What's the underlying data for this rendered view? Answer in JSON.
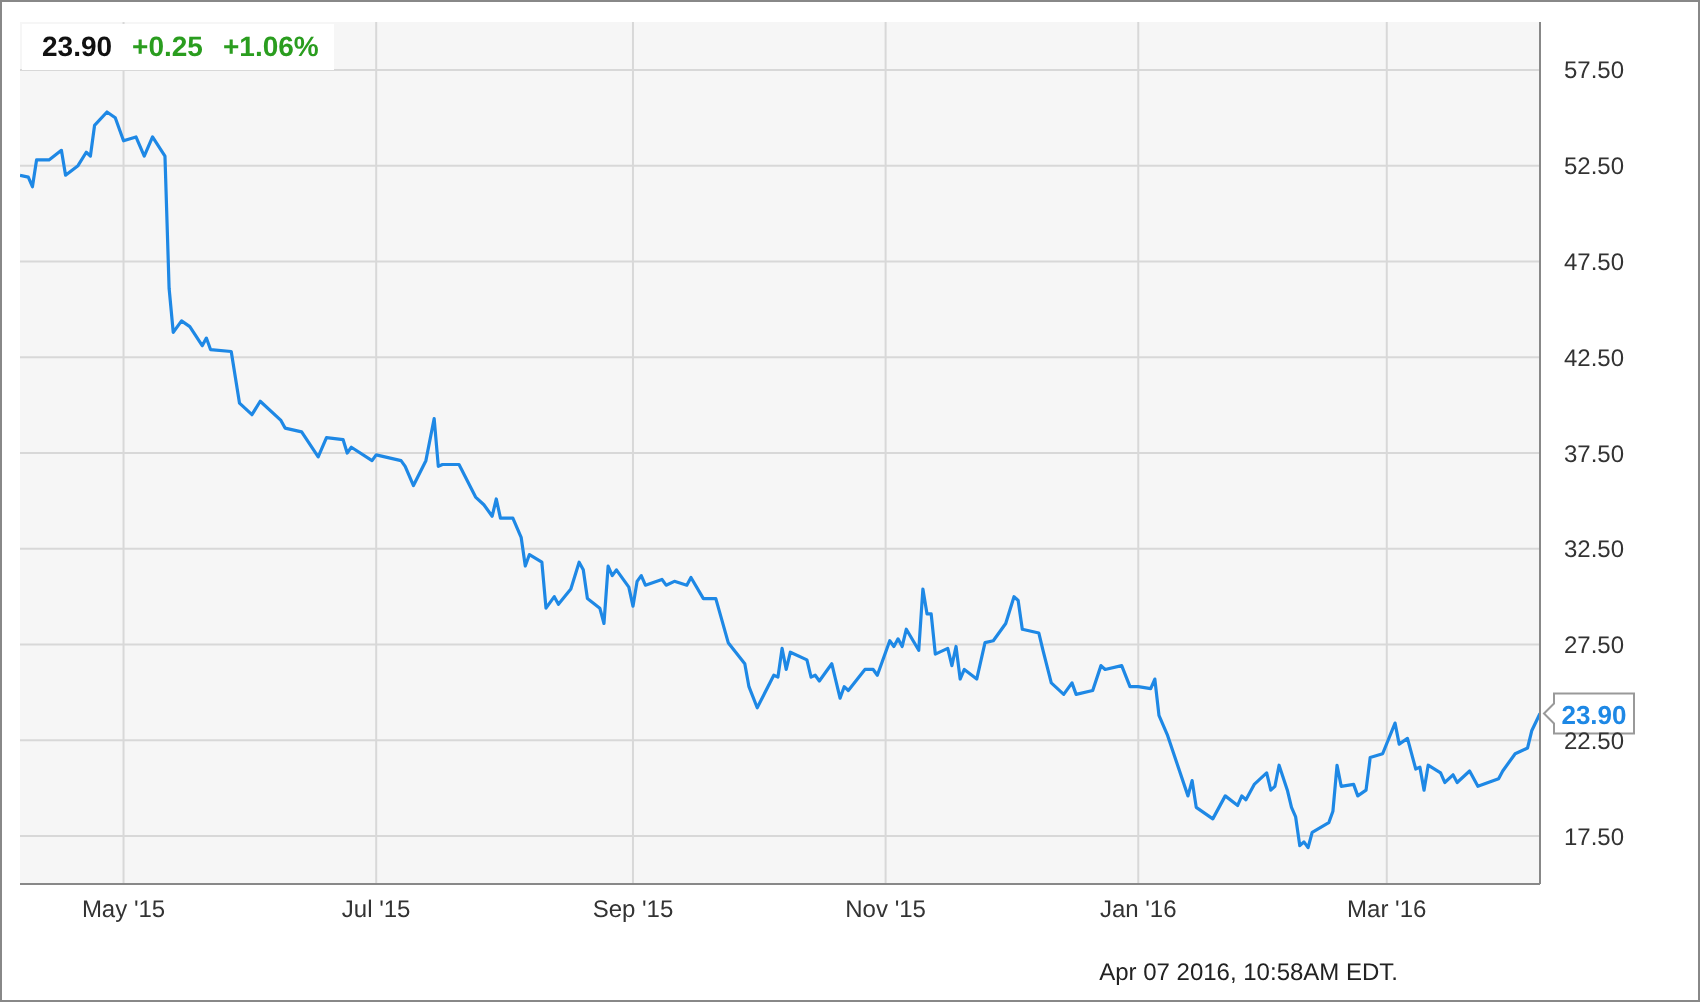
{
  "chart_data": {
    "type": "line",
    "annotations": [
      "23.90",
      "+0.25",
      "+1.06%",
      "Apr 07 2016, 10:58AM EDT.",
      {
        "text": "23.90",
        "x": "2016-04-07",
        "y": 23.9
      }
    ],
    "x": [
      "2015-04-06",
      "2015-04-08",
      "2015-04-09",
      "2015-04-10",
      "2015-04-13",
      "2015-04-16",
      "2015-04-17",
      "2015-04-20",
      "2015-04-22",
      "2015-04-23",
      "2015-04-24",
      "2015-04-27",
      "2015-04-29",
      "2015-05-01",
      "2015-05-04",
      "2015-05-06",
      "2015-05-08",
      "2015-05-11",
      "2015-05-12",
      "2015-05-13",
      "2015-05-15",
      "2015-05-17",
      "2015-05-20",
      "2015-05-21",
      "2015-05-22",
      "2015-05-27",
      "2015-05-29",
      "2015-06-01",
      "2015-06-03",
      "2015-06-08",
      "2015-06-09",
      "2015-06-13",
      "2015-06-17",
      "2015-06-19",
      "2015-06-23",
      "2015-06-24",
      "2015-06-25",
      "2015-06-30",
      "2015-07-01",
      "2015-07-07",
      "2015-07-08",
      "2015-07-10",
      "2015-07-13",
      "2015-07-15",
      "2015-07-16",
      "2015-07-17",
      "2015-07-21",
      "2015-07-25",
      "2015-07-27",
      "2015-07-29",
      "2015-07-30",
      "2015-07-31",
      "2015-08-03",
      "2015-08-05",
      "2015-08-06",
      "2015-08-07",
      "2015-08-10",
      "2015-08-11",
      "2015-08-13",
      "2015-08-14",
      "2015-08-17",
      "2015-08-19",
      "2015-08-20",
      "2015-08-21",
      "2015-08-24",
      "2015-08-25",
      "2015-08-26",
      "2015-08-27",
      "2015-08-28",
      "2015-08-31",
      "2015-09-01",
      "2015-09-02",
      "2015-09-03",
      "2015-09-04",
      "2015-09-08",
      "2015-09-09",
      "2015-09-11",
      "2015-09-14",
      "2015-09-15",
      "2015-09-18",
      "2015-09-21",
      "2015-09-24",
      "2015-09-28",
      "2015-09-29",
      "2015-10-01",
      "2015-10-05",
      "2015-10-06",
      "2015-10-07",
      "2015-10-08",
      "2015-10-09",
      "2015-10-13",
      "2015-10-14",
      "2015-10-15",
      "2015-10-16",
      "2015-10-19",
      "2015-10-21",
      "2015-10-22",
      "2015-10-23",
      "2015-10-27",
      "2015-10-29",
      "2015-10-30",
      "2015-11-02",
      "2015-11-03",
      "2015-11-04",
      "2015-11-05",
      "2015-11-06",
      "2015-11-09",
      "2015-11-10",
      "2015-11-11",
      "2015-11-12",
      "2015-11-13",
      "2015-11-16",
      "2015-11-17",
      "2015-11-18",
      "2015-11-19",
      "2015-11-20",
      "2015-11-23",
      "2015-11-25",
      "2015-11-27",
      "2015-11-30",
      "2015-12-02",
      "2015-12-03",
      "2015-12-04",
      "2015-12-08",
      "2015-12-09",
      "2015-12-11",
      "2015-12-14",
      "2015-12-16",
      "2015-12-17",
      "2015-12-21",
      "2015-12-23",
      "2015-12-24",
      "2015-12-28",
      "2015-12-30",
      "2016-01-01",
      "2016-01-04",
      "2016-01-05",
      "2016-01-06",
      "2016-01-08",
      "2016-01-13",
      "2016-01-14",
      "2016-01-15",
      "2016-01-19",
      "2016-01-22",
      "2016-01-25",
      "2016-01-26",
      "2016-01-27",
      "2016-01-29",
      "2016-02-01",
      "2016-02-02",
      "2016-02-03",
      "2016-02-04",
      "2016-02-06",
      "2016-02-07",
      "2016-02-08",
      "2016-02-09",
      "2016-02-10",
      "2016-02-11",
      "2016-02-12",
      "2016-02-16",
      "2016-02-17",
      "2016-02-18",
      "2016-02-19",
      "2016-02-22",
      "2016-02-23",
      "2016-02-25",
      "2016-02-26",
      "2016-02-29",
      "2016-03-03",
      "2016-03-04",
      "2016-03-06",
      "2016-03-08",
      "2016-03-09",
      "2016-03-10",
      "2016-03-11",
      "2016-03-14",
      "2016-03-15",
      "2016-03-17",
      "2016-03-18",
      "2016-03-21",
      "2016-03-23",
      "2016-03-28",
      "2016-03-29",
      "2016-04-01",
      "2016-04-04",
      "2016-04-05",
      "2016-04-07"
    ],
    "values": [
      52.0,
      51.9,
      51.4,
      52.8,
      52.8,
      53.3,
      52.0,
      52.5,
      53.2,
      53.0,
      54.6,
      55.3,
      55.0,
      53.8,
      54.0,
      53.0,
      54.0,
      53.0,
      46.1,
      43.8,
      44.4,
      44.1,
      43.1,
      43.5,
      42.9,
      42.8,
      40.1,
      39.5,
      40.2,
      39.2,
      38.8,
      38.6,
      37.3,
      38.3,
      38.2,
      37.5,
      37.8,
      37.1,
      37.4,
      37.1,
      36.8,
      35.8,
      37.1,
      39.3,
      36.8,
      36.9,
      36.9,
      35.2,
      34.8,
      34.2,
      35.1,
      34.1,
      34.1,
      33.1,
      31.6,
      32.2,
      31.8,
      29.4,
      30.0,
      29.6,
      30.4,
      31.8,
      31.4,
      29.9,
      29.4,
      28.6,
      31.6,
      31.1,
      31.4,
      30.5,
      29.5,
      30.8,
      31.1,
      30.6,
      30.9,
      30.6,
      30.8,
      30.6,
      31.0,
      29.9,
      29.9,
      27.6,
      26.5,
      25.3,
      24.2,
      25.9,
      25.8,
      27.3,
      26.2,
      27.1,
      26.7,
      25.8,
      25.9,
      25.6,
      26.5,
      24.7,
      25.3,
      25.1,
      26.2,
      26.2,
      25.9,
      27.7,
      27.4,
      27.8,
      27.4,
      28.3,
      27.2,
      30.4,
      29.1,
      29.1,
      27.0,
      27.3,
      26.4,
      27.4,
      25.7,
      26.2,
      25.7,
      27.6,
      27.7,
      28.6,
      30.0,
      29.8,
      28.3,
      28.1,
      27.2,
      25.5,
      24.9,
      25.5,
      24.9,
      25.1,
      26.4,
      26.2,
      26.4,
      25.3,
      25.3,
      25.2,
      25.7,
      23.8,
      22.8,
      19.6,
      20.4,
      19.0,
      18.4,
      19.6,
      19.1,
      19.6,
      19.4,
      20.2,
      20.8,
      19.9,
      20.1,
      21.2,
      19.9,
      19.0,
      18.5,
      17.0,
      17.2,
      16.9,
      17.7,
      18.2,
      18.8,
      21.2,
      20.1,
      20.2,
      19.6,
      19.9,
      21.6,
      21.8,
      23.4,
      22.3,
      22.6,
      21.0,
      21.1,
      19.9,
      21.2,
      20.8,
      20.3,
      20.7,
      20.3,
      20.9,
      20.1,
      20.5,
      20.9,
      21.8,
      22.1,
      23.0,
      23.9
    ],
    "color": "#1e88e5",
    "xlim": [
      "2015-04-06",
      "2016-04-07"
    ],
    "xticks": [
      {
        "value": "2015-05-01",
        "label": "May '15"
      },
      {
        "value": "2015-07-01",
        "label": "Jul '15"
      },
      {
        "value": "2015-09-01",
        "label": "Sep '15"
      },
      {
        "value": "2015-11-01",
        "label": "Nov '15"
      },
      {
        "value": "2016-01-01",
        "label": "Jan '16"
      },
      {
        "value": "2016-03-01",
        "label": "Mar '16"
      }
    ],
    "ylim": [
      15,
      60
    ],
    "yticks": [
      {
        "value": 17.5,
        "label": "17.50"
      },
      {
        "value": 22.5,
        "label": "22.50"
      },
      {
        "value": 27.5,
        "label": "27.50"
      },
      {
        "value": 32.5,
        "label": "32.50"
      },
      {
        "value": 37.5,
        "label": "37.50"
      },
      {
        "value": 42.5,
        "label": "42.50"
      },
      {
        "value": 47.5,
        "label": "47.50"
      },
      {
        "value": 52.5,
        "label": "52.50"
      },
      {
        "value": 57.5,
        "label": "57.50"
      }
    ],
    "grid": true,
    "line_style": "solid"
  }
}
